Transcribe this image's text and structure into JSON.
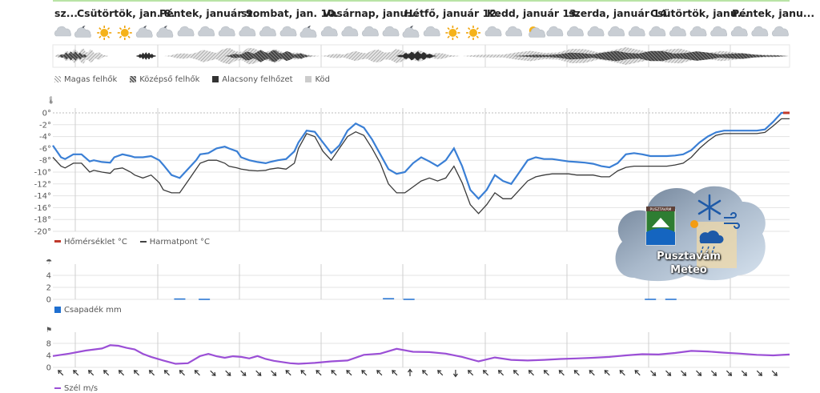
{
  "days": [
    "sz...",
    "Csütörtök, jan. 8.",
    "Péntek, január 9.",
    "szombat, jan. 10.",
    "Vasárnap, janu...",
    "Hétfő, január 12.",
    "Kedd, január 13.",
    "szerda, január 14.",
    "Csütörtök, janu...",
    "Péntek, janu..."
  ],
  "weather_icons": [
    "cloud",
    "night",
    "sun",
    "sun",
    "night",
    "night",
    "cloud",
    "cloud",
    "cloud",
    "cloud",
    "cloud",
    "cloud",
    "night",
    "cloud",
    "cloud",
    "cloud",
    "cloud",
    "night",
    "cloud",
    "sun",
    "sun",
    "cloud",
    "cloud",
    "sun-cloud",
    "cloud",
    "cloud",
    "cloud",
    "cloud",
    "cloud",
    "cloud",
    "cloud",
    "cloud",
    "cloud",
    "cloud",
    "cloud",
    "cloud"
  ],
  "cloud_legend": {
    "high": "Magas felhők",
    "mid": "Középső felhők",
    "low": "Alacsony felhőzet",
    "fog": "Köd"
  },
  "temp_legend": {
    "temp": "Hőmérséklet °C",
    "dew": "Harmatpont °C"
  },
  "precip_legend": "Csapadék mm",
  "wind_legend": "Szél m/s",
  "logo": {
    "line1": "Pusztavám",
    "line2": "Meteo",
    "badge": "PUSZTAVÁM"
  },
  "colors": {
    "temp": "#3a7fd5",
    "dew": "#3a3a3a",
    "precip": "#1f6fd0",
    "wind": "#9b4fd6",
    "grid": "#e3e3e3",
    "daysep": "#cfcfcf",
    "zero": "#c0392b"
  },
  "chart_data": [
    {
      "type": "line",
      "title": "",
      "ylabel": "°C",
      "ylim": [
        -20,
        0
      ],
      "yticks": [
        "0°",
        "-2°",
        "-4°",
        "-6°",
        "-8°",
        "-10°",
        "-12°",
        "-14°",
        "-16°",
        "-18°",
        "-20°"
      ],
      "x": [
        0,
        2,
        3,
        5,
        7,
        9,
        10,
        12,
        14,
        15,
        17,
        19,
        20,
        22,
        24,
        26,
        27,
        29,
        31,
        33,
        35,
        36,
        38,
        40,
        42,
        43,
        45,
        46,
        48,
        50,
        52,
        53,
        55,
        57,
        59,
        60,
        62,
        64,
        66,
        68,
        70,
        72,
        74,
        76,
        78,
        80,
        82,
        84,
        86,
        88,
        90,
        92,
        94,
        96,
        98,
        100,
        102,
        104,
        106,
        108,
        110,
        112,
        114,
        116,
        118,
        120,
        122,
        124,
        126,
        128,
        130,
        132,
        134,
        136,
        138,
        140,
        142,
        144,
        146,
        148,
        150,
        152,
        154,
        156,
        158,
        160,
        162,
        164,
        166,
        168,
        170,
        172,
        174,
        176,
        178,
        180
      ],
      "series": [
        {
          "name": "Hőmérséklet °C",
          "values": [
            -5.5,
            -7.5,
            -7.8,
            -7,
            -7,
            -8.2,
            -8,
            -8.3,
            -8.4,
            -7.5,
            -7,
            -7.3,
            -7.5,
            -7.5,
            -7.3,
            -8,
            -8.8,
            -10.5,
            -11,
            -9.5,
            -8,
            -7,
            -6.8,
            -6,
            -5.7,
            -6,
            -6.5,
            -7.5,
            -8,
            -8.3,
            -8.5,
            -8.3,
            -8,
            -7.8,
            -6.5,
            -5,
            -3,
            -3.2,
            -5,
            -6.8,
            -5.5,
            -3,
            -1.8,
            -2.5,
            -4.5,
            -7,
            -9.5,
            -10.3,
            -10,
            -8.5,
            -7.5,
            -8.2,
            -9,
            -8,
            -6,
            -9,
            -13,
            -14.5,
            -13,
            -10.5,
            -11.5,
            -12,
            -10,
            -8,
            -7.5,
            -7.8,
            -7.8,
            -8,
            -8.2,
            -8.3,
            -8.4,
            -8.6,
            -9,
            -9.2,
            -8.5,
            -7,
            -6.8,
            -7,
            -7.3,
            -7.3,
            -7.3,
            -7.2,
            -7,
            -6.3,
            -5,
            -4,
            -3.3,
            -3,
            -3,
            -3,
            -3,
            -3,
            -2.8,
            -1.5,
            0,
            0
          ]
        },
        {
          "name": "Harmatpont °C",
          "values": [
            -7.5,
            -9,
            -9.3,
            -8.5,
            -8.5,
            -10,
            -9.7,
            -10,
            -10.2,
            -9.5,
            -9.3,
            -10,
            -10.5,
            -11,
            -10.5,
            -11.8,
            -13,
            -13.5,
            -13.5,
            -11.5,
            -9.5,
            -8.5,
            -8,
            -8,
            -8.5,
            -9,
            -9.3,
            -9.5,
            -9.7,
            -9.8,
            -9.7,
            -9.5,
            -9.3,
            -9.5,
            -8.5,
            -6,
            -3.5,
            -4,
            -6.5,
            -8,
            -6,
            -4,
            -3.2,
            -3.8,
            -6,
            -8.5,
            -12,
            -13.5,
            -13.5,
            -12.5,
            -11.5,
            -11,
            -11.5,
            -11,
            -9,
            -11.8,
            -15.5,
            -17,
            -15.5,
            -13.5,
            -14.5,
            -14.5,
            -13,
            -11.5,
            -10.8,
            -10.5,
            -10.3,
            -10.3,
            -10.3,
            -10.5,
            -10.5,
            -10.5,
            -10.8,
            -10.8,
            -9.8,
            -9.2,
            -9,
            -9,
            -9,
            -9,
            -9,
            -8.8,
            -8.5,
            -7.5,
            -6,
            -4.8,
            -3.8,
            -3.5,
            -3.5,
            -3.5,
            -3.5,
            -3.5,
            -3.3,
            -2.2,
            -1,
            -1
          ]
        }
      ]
    },
    {
      "type": "bar",
      "title": "",
      "ylabel": "mm",
      "ylim": [
        0,
        4
      ],
      "yticks": [
        "4",
        "2",
        "0"
      ],
      "bars": [
        {
          "x": 31,
          "value": 0.15
        },
        {
          "x": 37,
          "value": 0.1
        },
        {
          "x": 82,
          "value": 0.2
        },
        {
          "x": 87,
          "value": 0.1
        },
        {
          "x": 146,
          "value": 0.1
        },
        {
          "x": 151,
          "value": 0.1
        }
      ]
    },
    {
      "type": "line",
      "title": "",
      "ylabel": "m/s",
      "ylim": [
        0,
        8
      ],
      "yticks": [
        "8",
        "4",
        "0"
      ],
      "x": [
        0,
        4,
        8,
        12,
        14,
        16,
        18,
        20,
        22,
        24,
        27,
        30,
        33,
        36,
        38,
        40,
        42,
        44,
        46,
        48,
        50,
        52,
        54,
        56,
        58,
        60,
        64,
        68,
        72,
        76,
        80,
        84,
        88,
        92,
        96,
        100,
        104,
        108,
        112,
        116,
        120,
        124,
        128,
        132,
        136,
        140,
        144,
        148,
        152,
        156,
        160,
        164,
        168,
        172,
        176,
        180
      ],
      "series": [
        {
          "name": "Szél m/s",
          "values": [
            3.8,
            4.6,
            5.6,
            6.3,
            7.4,
            7.2,
            6.5,
            6,
            4.5,
            3.5,
            2.3,
            1.2,
            1.4,
            3.8,
            4.5,
            3.7,
            3.2,
            3.7,
            3.5,
            3,
            3.8,
            2.8,
            2.2,
            1.8,
            1.4,
            1.2,
            1.5,
            2,
            2.3,
            4.2,
            4.6,
            6.2,
            5.2,
            5.1,
            4.6,
            3.5,
            2,
            3.3,
            2.5,
            2.3,
            2.5,
            2.8,
            3,
            3.2,
            3.5,
            4,
            4.4,
            4.3,
            4.8,
            5.5,
            5.3,
            4.9,
            4.6,
            4.2,
            4,
            4.3
          ]
        }
      ],
      "wind_dirs": [
        135,
        135,
        135,
        135,
        135,
        135,
        135,
        135,
        135,
        135,
        315,
        315,
        315,
        315,
        315,
        135,
        135,
        135,
        135,
        135,
        135,
        135,
        135,
        180,
        135,
        135,
        0,
        135,
        135,
        135,
        135,
        135,
        135,
        135,
        135,
        135,
        135,
        135,
        135,
        315,
        315,
        315,
        315,
        315,
        315,
        315,
        315,
        315
      ]
    }
  ]
}
